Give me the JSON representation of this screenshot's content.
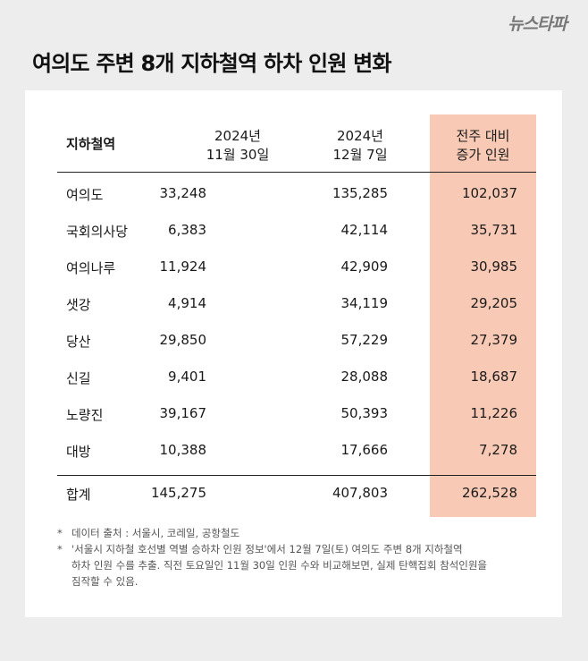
{
  "logo": "뉴스타파",
  "title": "여의도 주변 8개 지하철역 하차 인원 변화",
  "table": {
    "headers": {
      "station": "지하철역",
      "col1": [
        "2024년",
        "11월 30일"
      ],
      "col2": [
        "2024년",
        "12월 7일"
      ],
      "col3": [
        "전주 대비",
        "증가 인원"
      ]
    },
    "rows": [
      {
        "station": "여의도",
        "nov30": "33,248",
        "dec7": "135,285",
        "increase": "102,037"
      },
      {
        "station": "국회의사당",
        "nov30": "6,383",
        "dec7": "42,114",
        "increase": "35,731"
      },
      {
        "station": "여의나루",
        "nov30": "11,924",
        "dec7": "42,909",
        "increase": "30,985"
      },
      {
        "station": "샛강",
        "nov30": "4,914",
        "dec7": "34,119",
        "increase": "29,205"
      },
      {
        "station": "당산",
        "nov30": "29,850",
        "dec7": "57,229",
        "increase": "27,379"
      },
      {
        "station": "신길",
        "nov30": "9,401",
        "dec7": "28,088",
        "increase": "18,687"
      },
      {
        "station": "노량진",
        "nov30": "39,167",
        "dec7": "50,393",
        "increase": "11,226"
      },
      {
        "station": "대방",
        "nov30": "10,388",
        "dec7": "17,666",
        "increase": "7,278"
      }
    ],
    "total": {
      "station": "합계",
      "nov30": "145,275",
      "dec7": "407,803",
      "increase": "262,528"
    }
  },
  "notes": [
    {
      "marker": "*",
      "lines": [
        "데이터 출처 : 서울시, 코레일, 공항철도"
      ]
    },
    {
      "marker": "*",
      "lines": [
        "'서울시 지하철 호선별 역별 승하차 인원 정보'에서 12월 7일(토) 여의도 주변 8개 지하철역",
        "하차 인원 수를 추출. 직전 토요일인 11월 30일 인원 수와 비교해보면, 실제 탄핵집회 참석인원을",
        "짐작할 수 있음."
      ]
    }
  ],
  "colors": {
    "background": "#ededed",
    "card": "#ffffff",
    "highlight": "#f8cab6"
  }
}
